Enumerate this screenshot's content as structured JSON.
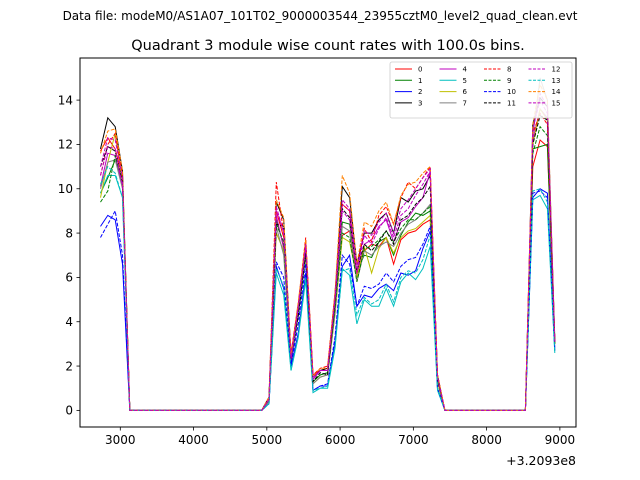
{
  "chart_data": {
    "type": "line",
    "suptitle": "Data file: modeM0/AS1A07_101T02_9000003544_23955cztM0_level2_quad_clean.evt",
    "title": "Quadrant 3 module wise count rates with 100.0s bins.",
    "xlabel": "",
    "ylabel": "",
    "x_offset_label": "+3.2093e8",
    "xlim": [
      2450,
      9220
    ],
    "ylim": [
      -0.75,
      15.9
    ],
    "x_ticks": [
      3000,
      4000,
      5000,
      6000,
      7000,
      8000,
      9000
    ],
    "y_ticks": [
      0,
      2,
      4,
      6,
      8,
      10,
      12,
      14
    ],
    "x": [
      2730,
      2830,
      2930,
      3030,
      3130,
      3230,
      3330,
      3430,
      3530,
      3630,
      3730,
      3830,
      3930,
      4030,
      4130,
      4230,
      4330,
      4430,
      4530,
      4630,
      4730,
      4830,
      4930,
      5030,
      5130,
      5230,
      5330,
      5430,
      5530,
      5630,
      5730,
      5830,
      5930,
      6030,
      6130,
      6230,
      6330,
      6430,
      6530,
      6630,
      6730,
      6830,
      6930,
      7030,
      7130,
      7230,
      7330,
      7430,
      7530,
      7630,
      7730,
      7830,
      7930,
      8030,
      8130,
      8230,
      8330,
      8430,
      8530,
      8630,
      8730,
      8830,
      8930
    ],
    "legend": {
      "location": "upper right",
      "ncol": 4
    },
    "series": [
      {
        "name": "0",
        "color": "#ff0000",
        "dash": "solid",
        "values": [
          11.7,
          12.3,
          11.8,
          10.5,
          0,
          0,
          0,
          0,
          0,
          0,
          0,
          0,
          0,
          0,
          0,
          0,
          0,
          0,
          0,
          0,
          0,
          0,
          0,
          0.5,
          9.0,
          7.8,
          2.4,
          4.5,
          7.5,
          1.6,
          1.8,
          1.9,
          4.8,
          7.9,
          8.1,
          6.0,
          7.2,
          7.5,
          7.4,
          7.8,
          6.6,
          7.7,
          8.0,
          8.1,
          8.4,
          8.6,
          1.3,
          0,
          0,
          0,
          0,
          0,
          0,
          0,
          0,
          0,
          0,
          0,
          0,
          11.0,
          12.2,
          11.9,
          3.0
        ]
      },
      {
        "name": "1",
        "color": "#008000",
        "dash": "solid",
        "values": [
          9.8,
          10.5,
          11.3,
          10.4,
          0,
          0,
          0,
          0,
          0,
          0,
          0,
          0,
          0,
          0,
          0,
          0,
          0,
          0,
          0,
          0,
          0,
          0,
          0,
          0.5,
          8.6,
          7.4,
          2.2,
          4.3,
          7.0,
          1.3,
          1.6,
          1.7,
          4.5,
          8.5,
          8.4,
          6.3,
          7.0,
          6.9,
          7.6,
          7.8,
          7.0,
          7.9,
          8.5,
          8.9,
          8.8,
          9.0,
          1.4,
          0,
          0,
          0,
          0,
          0,
          0,
          0,
          0,
          0,
          0,
          0,
          0,
          11.8,
          11.9,
          12.0,
          3.0
        ]
      },
      {
        "name": "2",
        "color": "#0000ff",
        "dash": "solid",
        "values": [
          8.3,
          8.8,
          8.6,
          6.6,
          0,
          0,
          0,
          0,
          0,
          0,
          0,
          0,
          0,
          0,
          0,
          0,
          0,
          0,
          0,
          0,
          0,
          0,
          0,
          0.3,
          6.5,
          5.5,
          2.0,
          3.5,
          6.2,
          0.9,
          1.1,
          1.1,
          3.1,
          6.5,
          7.0,
          4.7,
          5.2,
          5.1,
          5.5,
          5.7,
          5.4,
          6.2,
          6.1,
          6.3,
          7.3,
          8.1,
          1.0,
          0,
          0,
          0,
          0,
          0,
          0,
          0,
          0,
          0,
          0,
          0,
          0,
          9.6,
          10.0,
          9.8,
          2.8
        ]
      },
      {
        "name": "3",
        "color": "#000000",
        "dash": "solid",
        "values": [
          11.8,
          13.2,
          12.8,
          10.8,
          0,
          0,
          0,
          0,
          0,
          0,
          0,
          0,
          0,
          0,
          0,
          0,
          0,
          0,
          0,
          0,
          0,
          0,
          0,
          0.6,
          9.4,
          8.6,
          2.5,
          4.8,
          7.6,
          1.5,
          1.8,
          1.9,
          5.2,
          10.1,
          9.6,
          6.6,
          8.0,
          8.0,
          8.6,
          8.9,
          8.0,
          9.6,
          9.4,
          9.9,
          10.0,
          10.6,
          1.6,
          0,
          0,
          0,
          0,
          0,
          0,
          0,
          0,
          0,
          0,
          0,
          0,
          12.9,
          14.1,
          13.7,
          3.2
        ]
      },
      {
        "name": "4",
        "color": "#bf00bf",
        "dash": "solid",
        "values": [
          10.1,
          11.6,
          11.5,
          10.1,
          0,
          0,
          0,
          0,
          0,
          0,
          0,
          0,
          0,
          0,
          0,
          0,
          0,
          0,
          0,
          0,
          0,
          0,
          0,
          0.5,
          8.8,
          7.3,
          2.4,
          4.6,
          7.2,
          1.4,
          1.8,
          1.8,
          4.9,
          9.3,
          9.0,
          6.1,
          7.5,
          7.7,
          8.3,
          8.6,
          7.6,
          8.5,
          8.7,
          9.2,
          9.6,
          10.8,
          1.5,
          0,
          0,
          0,
          0,
          0,
          0,
          0,
          0,
          0,
          0,
          0,
          0,
          12.2,
          13.6,
          13.2,
          3.1
        ]
      },
      {
        "name": "5",
        "color": "#00bfbf",
        "dash": "solid",
        "values": [
          9.8,
          10.6,
          10.6,
          9.6,
          0,
          0,
          0,
          0,
          0,
          0,
          0,
          0,
          0,
          0,
          0,
          0,
          0,
          0,
          0,
          0,
          0,
          0,
          0,
          0.3,
          6.2,
          5.2,
          1.8,
          3.3,
          5.9,
          0.8,
          1.0,
          1.0,
          2.8,
          6.4,
          6.1,
          3.9,
          5.0,
          4.7,
          4.7,
          5.5,
          4.7,
          5.8,
          6.2,
          5.9,
          6.4,
          7.4,
          0.9,
          0,
          0,
          0,
          0,
          0,
          0,
          0,
          0,
          0,
          0,
          0,
          0,
          9.5,
          9.7,
          9.1,
          2.6
        ]
      },
      {
        "name": "6",
        "color": "#bfbf00",
        "dash": "solid",
        "values": [
          9.6,
          11.2,
          12.5,
          10.3,
          0,
          0,
          0,
          0,
          0,
          0,
          0,
          0,
          0,
          0,
          0,
          0,
          0,
          0,
          0,
          0,
          0,
          0,
          0,
          0.4,
          8.0,
          7.2,
          2.2,
          4.4,
          7.2,
          1.2,
          1.5,
          1.6,
          4.3,
          7.8,
          7.6,
          6.0,
          7.4,
          6.2,
          7.3,
          7.8,
          7.1,
          7.8,
          8.1,
          8.2,
          8.5,
          8.8,
          1.3,
          0,
          0,
          0,
          0,
          0,
          0,
          0,
          0,
          0,
          0,
          0,
          0,
          12.0,
          13.6,
          13.1,
          3.0
        ]
      },
      {
        "name": "7",
        "color": "#808080",
        "dash": "solid",
        "values": [
          10.0,
          11.2,
          11.3,
          10.0,
          0,
          0,
          0,
          0,
          0,
          0,
          0,
          0,
          0,
          0,
          0,
          0,
          0,
          0,
          0,
          0,
          0,
          0,
          0,
          0.4,
          8.3,
          7.0,
          2.2,
          4.3,
          7.1,
          1.2,
          1.5,
          1.6,
          4.4,
          8.3,
          8.1,
          5.8,
          7.2,
          7.0,
          7.4,
          7.6,
          7.4,
          8.0,
          8.4,
          8.6,
          8.9,
          9.3,
          1.4,
          0,
          0,
          0,
          0,
          0,
          0,
          0,
          0,
          0,
          0,
          0,
          0,
          12.4,
          15.0,
          14.0,
          3.1
        ]
      },
      {
        "name": "8",
        "color": "#ff0000",
        "dash": "dashed",
        "values": [
          10.6,
          12.0,
          12.5,
          10.6,
          0,
          0,
          0,
          0,
          0,
          0,
          0,
          0,
          0,
          0,
          0,
          0,
          0,
          0,
          0,
          0,
          0,
          0,
          0,
          0.6,
          10.3,
          8.0,
          2.6,
          4.8,
          7.8,
          1.6,
          1.9,
          2.0,
          5.3,
          9.3,
          9.0,
          6.2,
          8.2,
          7.6,
          8.8,
          9.2,
          8.4,
          9.6,
          10.3,
          10.0,
          10.5,
          11.0,
          1.6,
          0,
          0,
          0,
          0,
          0,
          0,
          0,
          0,
          0,
          0,
          0,
          0,
          12.5,
          13.4,
          12.9,
          3.1
        ]
      },
      {
        "name": "9",
        "color": "#008000",
        "dash": "dashed",
        "values": [
          9.4,
          9.9,
          11.5,
          10.3,
          0,
          0,
          0,
          0,
          0,
          0,
          0,
          0,
          0,
          0,
          0,
          0,
          0,
          0,
          0,
          0,
          0,
          0,
          0,
          0.5,
          8.4,
          7.6,
          2.3,
          4.4,
          7.2,
          1.3,
          1.6,
          1.7,
          4.6,
          8.0,
          7.8,
          5.8,
          7.3,
          7.4,
          7.7,
          8.1,
          7.6,
          8.2,
          8.6,
          8.6,
          8.9,
          9.2,
          1.4,
          0,
          0,
          0,
          0,
          0,
          0,
          0,
          0,
          0,
          0,
          0,
          0,
          11.6,
          12.8,
          12.4,
          3.0
        ]
      },
      {
        "name": "10",
        "color": "#0000ff",
        "dash": "dashed",
        "values": [
          7.8,
          8.4,
          9.0,
          7.0,
          0,
          0,
          0,
          0,
          0,
          0,
          0,
          0,
          0,
          0,
          0,
          0,
          0,
          0,
          0,
          0,
          0,
          0,
          0,
          0.3,
          6.7,
          6.0,
          2.1,
          3.9,
          6.6,
          0.9,
          1.1,
          1.2,
          3.3,
          7.0,
          6.6,
          4.7,
          5.6,
          5.5,
          5.7,
          6.2,
          5.8,
          6.5,
          6.8,
          6.9,
          7.5,
          8.3,
          1.0,
          0,
          0,
          0,
          0,
          0,
          0,
          0,
          0,
          0,
          0,
          0,
          0,
          9.8,
          9.9,
          9.6,
          2.7
        ]
      },
      {
        "name": "11",
        "color": "#000000",
        "dash": "dashed",
        "values": [
          11.0,
          11.9,
          11.7,
          10.3,
          0,
          0,
          0,
          0,
          0,
          0,
          0,
          0,
          0,
          0,
          0,
          0,
          0,
          0,
          0,
          0,
          0,
          0,
          0,
          0.5,
          8.4,
          8.3,
          2.3,
          4.3,
          7.1,
          1.3,
          1.7,
          1.6,
          4.9,
          9.1,
          8.7,
          6.3,
          7.5,
          7.2,
          7.6,
          8.1,
          7.5,
          8.6,
          8.8,
          9.3,
          9.6,
          10.1,
          1.4,
          0,
          0,
          0,
          0,
          0,
          0,
          0,
          0,
          0,
          0,
          0,
          0,
          12.0,
          13.3,
          13.1,
          3.1
        ]
      },
      {
        "name": "12",
        "color": "#bf00bf",
        "dash": "dashed",
        "values": [
          10.6,
          11.9,
          11.8,
          10.1,
          0,
          0,
          0,
          0,
          0,
          0,
          0,
          0,
          0,
          0,
          0,
          0,
          0,
          0,
          0,
          0,
          0,
          0,
          0,
          0.5,
          9.0,
          8.1,
          2.3,
          4.6,
          7.4,
          1.4,
          1.8,
          1.8,
          5.0,
          9.0,
          8.6,
          6.2,
          7.9,
          7.5,
          8.2,
          8.7,
          7.8,
          8.8,
          9.1,
          9.7,
          10.2,
          10.8,
          1.5,
          0,
          0,
          0,
          0,
          0,
          0,
          0,
          0,
          0,
          0,
          0,
          0,
          12.7,
          14.0,
          13.4,
          3.1
        ]
      },
      {
        "name": "13",
        "color": "#00bfbf",
        "dash": "dashed",
        "values": [
          10.2,
          11.0,
          10.7,
          9.6,
          0,
          0,
          0,
          0,
          0,
          0,
          0,
          0,
          0,
          0,
          0,
          0,
          0,
          0,
          0,
          0,
          0,
          0,
          0,
          0.3,
          6.4,
          5.6,
          1.8,
          3.4,
          6.0,
          0.9,
          1.0,
          1.1,
          2.9,
          6.3,
          6.4,
          4.3,
          5.1,
          4.8,
          5.0,
          5.7,
          4.9,
          6.0,
          6.3,
          6.2,
          6.8,
          7.9,
          1.0,
          0,
          0,
          0,
          0,
          0,
          0,
          0,
          0,
          0,
          0,
          0,
          0,
          9.9,
          10.0,
          9.4,
          2.6
        ]
      },
      {
        "name": "14",
        "color": "#ff8000",
        "dash": "dashed",
        "values": [
          11.6,
          12.6,
          12.7,
          10.8,
          0,
          0,
          0,
          0,
          0,
          0,
          0,
          0,
          0,
          0,
          0,
          0,
          0,
          0,
          0,
          0,
          0,
          0,
          0,
          0.6,
          9.5,
          8.7,
          2.5,
          4.9,
          7.7,
          1.5,
          1.9,
          1.9,
          5.3,
          10.6,
          9.8,
          6.6,
          8.5,
          8.3,
          9.0,
          9.4,
          8.4,
          9.7,
          10.2,
          10.3,
          10.7,
          11.0,
          1.6,
          0,
          0,
          0,
          0,
          0,
          0,
          0,
          0,
          0,
          0,
          0,
          0,
          12.9,
          14.7,
          14.0,
          3.2
        ]
      },
      {
        "name": "15",
        "color": "#bf00bf",
        "dash": "dashed",
        "values": [
          11.0,
          12.3,
          12.2,
          10.5,
          0,
          0,
          0,
          0,
          0,
          0,
          0,
          0,
          0,
          0,
          0,
          0,
          0,
          0,
          0,
          0,
          0,
          0,
          0,
          0.5,
          9.2,
          8.0,
          2.4,
          4.7,
          7.5,
          1.5,
          1.8,
          1.8,
          5.1,
          9.5,
          9.1,
          6.4,
          8.1,
          7.9,
          8.5,
          8.9,
          8.0,
          9.1,
          9.5,
          10.0,
          10.5,
          10.9,
          1.5,
          0,
          0,
          0,
          0,
          0,
          0,
          0,
          0,
          0,
          0,
          0,
          0,
          12.6,
          14.3,
          13.7,
          3.1
        ]
      }
    ]
  }
}
